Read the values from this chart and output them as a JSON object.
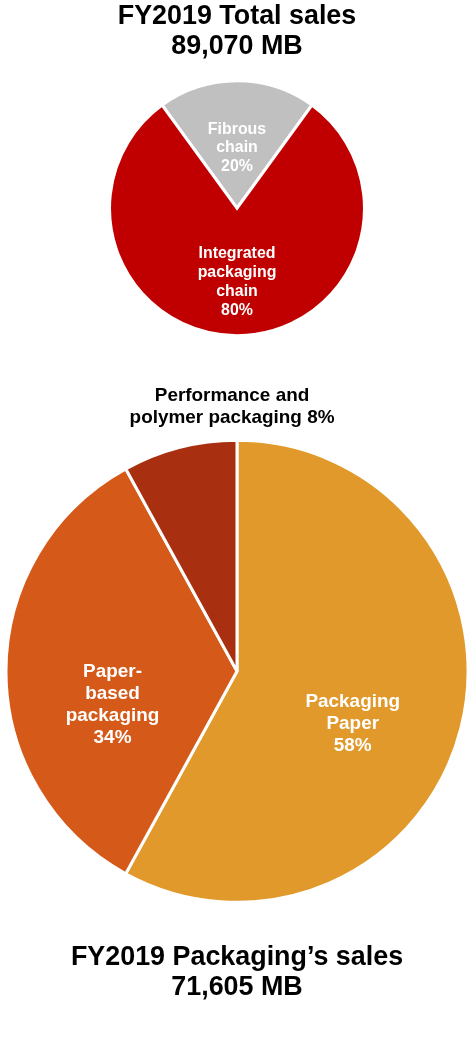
{
  "chart_data": [
    {
      "type": "pie",
      "title": "FY2019 Total sales",
      "subtitle": "89,070 MB",
      "categories": [
        "Fibrous chain",
        "Integrated packaging chain"
      ],
      "values": [
        20,
        80
      ],
      "colors": [
        "#c0c0c0",
        "#c00000"
      ],
      "value_labels": [
        "20%",
        "80%"
      ],
      "legend": false
    },
    {
      "type": "pie",
      "title": "FY2019 Packaging’s sales",
      "subtitle": "71,605 MB",
      "categories": [
        "Packaging Paper",
        "Paper-based packaging",
        "Performance and polymer packaging"
      ],
      "values": [
        58,
        34,
        8
      ],
      "colors": [
        "#e0992a",
        "#d55a1a",
        "#a83010"
      ],
      "value_labels": [
        "58%",
        "34%",
        "8%"
      ],
      "legend": false
    }
  ]
}
